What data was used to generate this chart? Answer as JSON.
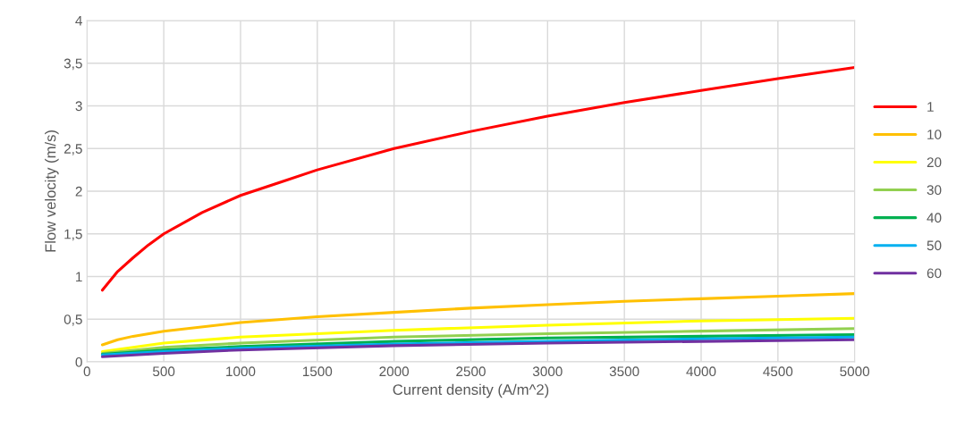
{
  "chart_data": {
    "type": "line",
    "xlabel": "Current density (A/m^2)",
    "ylabel": "Flow velocity (m/s)",
    "xlim": [
      0,
      5000
    ],
    "xticks": [
      0,
      500,
      1000,
      1500,
      2000,
      2500,
      3000,
      3500,
      4000,
      4500,
      5000
    ],
    "ylim": [
      0,
      4
    ],
    "yticks": [
      0,
      {
        "value": 0.5,
        "label": "0,5"
      },
      1,
      {
        "value": 1.5,
        "label": "1,5"
      },
      2,
      {
        "value": 2.5,
        "label": "2,5"
      },
      3,
      {
        "value": 3.5,
        "label": "3,5"
      },
      4
    ],
    "grid": true,
    "legend": "right",
    "marker": "none",
    "line_style": "solid",
    "series": [
      {
        "name": "1",
        "color": "#ff0000",
        "x": [
          100,
          150,
          200,
          300,
          400,
          500,
          750,
          1000,
          1250,
          1500,
          2000,
          2500,
          3000,
          3500,
          4000,
          4500,
          5000
        ],
        "values": [
          0.84,
          0.95,
          1.06,
          1.22,
          1.37,
          1.5,
          1.75,
          1.95,
          2.1,
          2.25,
          2.5,
          2.7,
          2.88,
          3.04,
          3.18,
          3.32,
          3.45
        ]
      },
      {
        "name": "10",
        "color": "#ffc000",
        "x": [
          100,
          200,
          300,
          500,
          1000,
          1500,
          2000,
          2500,
          3000,
          3500,
          4000,
          4500,
          5000
        ],
        "values": [
          0.2,
          0.26,
          0.3,
          0.36,
          0.46,
          0.53,
          0.58,
          0.63,
          0.67,
          0.71,
          0.74,
          0.77,
          0.8
        ]
      },
      {
        "name": "20",
        "color": "#ffff00",
        "x": [
          100,
          500,
          1000,
          2000,
          3000,
          4000,
          5000
        ],
        "values": [
          0.12,
          0.22,
          0.29,
          0.37,
          0.43,
          0.48,
          0.51
        ]
      },
      {
        "name": "30",
        "color": "#92d050",
        "x": [
          100,
          500,
          1000,
          2000,
          3000,
          4000,
          5000
        ],
        "values": [
          0.1,
          0.17,
          0.22,
          0.29,
          0.33,
          0.36,
          0.39
        ]
      },
      {
        "name": "40",
        "color": "#00b050",
        "x": [
          100,
          500,
          1000,
          2000,
          3000,
          4000,
          5000
        ],
        "values": [
          0.09,
          0.14,
          0.18,
          0.24,
          0.28,
          0.3,
          0.32
        ]
      },
      {
        "name": "50",
        "color": "#00b0f0",
        "x": [
          100,
          500,
          1000,
          2000,
          3000,
          4000,
          5000
        ],
        "values": [
          0.08,
          0.12,
          0.16,
          0.21,
          0.24,
          0.27,
          0.29
        ]
      },
      {
        "name": "60",
        "color": "#7030a0",
        "x": [
          100,
          500,
          1000,
          2000,
          3000,
          4000,
          5000
        ],
        "values": [
          0.06,
          0.1,
          0.14,
          0.19,
          0.22,
          0.24,
          0.26
        ]
      }
    ]
  }
}
